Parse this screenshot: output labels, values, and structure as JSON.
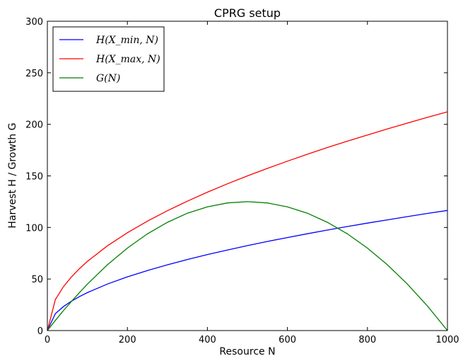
{
  "chart_data": {
    "type": "line",
    "title": "CPRG setup",
    "xlabel": "Resource N",
    "ylabel": "Harvest H / Growth G",
    "xlim": [
      0,
      1000
    ],
    "ylim": [
      0,
      300
    ],
    "xticks": [
      "0",
      "200",
      "400",
      "600",
      "800",
      "1000"
    ],
    "yticks": [
      "0",
      "50",
      "100",
      "150",
      "200",
      "250",
      "300"
    ],
    "legend_position": "top-left",
    "x": [
      0,
      20,
      40,
      60,
      80,
      100,
      150,
      200,
      250,
      300,
      350,
      400,
      450,
      500,
      550,
      600,
      650,
      700,
      750,
      800,
      850,
      900,
      950,
      1000
    ],
    "series": [
      {
        "name": "H(X_min, N)",
        "color": "#0000ff",
        "values": [
          0,
          16.4,
          23.2,
          28.5,
          32.9,
          36.8,
          45.1,
          52.1,
          58.2,
          63.8,
          68.9,
          73.7,
          78.1,
          82.4,
          86.4,
          90.2,
          93.9,
          97.5,
          100.9,
          104.2,
          107.4,
          110.5,
          113.6,
          116.5
        ]
      },
      {
        "name": "H(X_max, N)",
        "color": "#ff0000",
        "values": [
          0,
          30.0,
          42.4,
          52.0,
          60.0,
          67.1,
          82.2,
          94.9,
          106.1,
          116.2,
          125.5,
          134.2,
          142.3,
          150.0,
          157.3,
          164.3,
          171.0,
          177.5,
          183.7,
          189.7,
          195.6,
          201.2,
          206.8,
          212.1
        ]
      },
      {
        "name": "G(N)",
        "color": "#008000",
        "values": [
          0,
          9.8,
          19.2,
          28.2,
          36.8,
          45.0,
          63.8,
          80.0,
          93.8,
          105.0,
          113.8,
          120.0,
          123.8,
          125.0,
          123.8,
          120.0,
          113.8,
          105.0,
          93.8,
          80.0,
          63.8,
          45.0,
          23.8,
          0
        ]
      }
    ]
  }
}
